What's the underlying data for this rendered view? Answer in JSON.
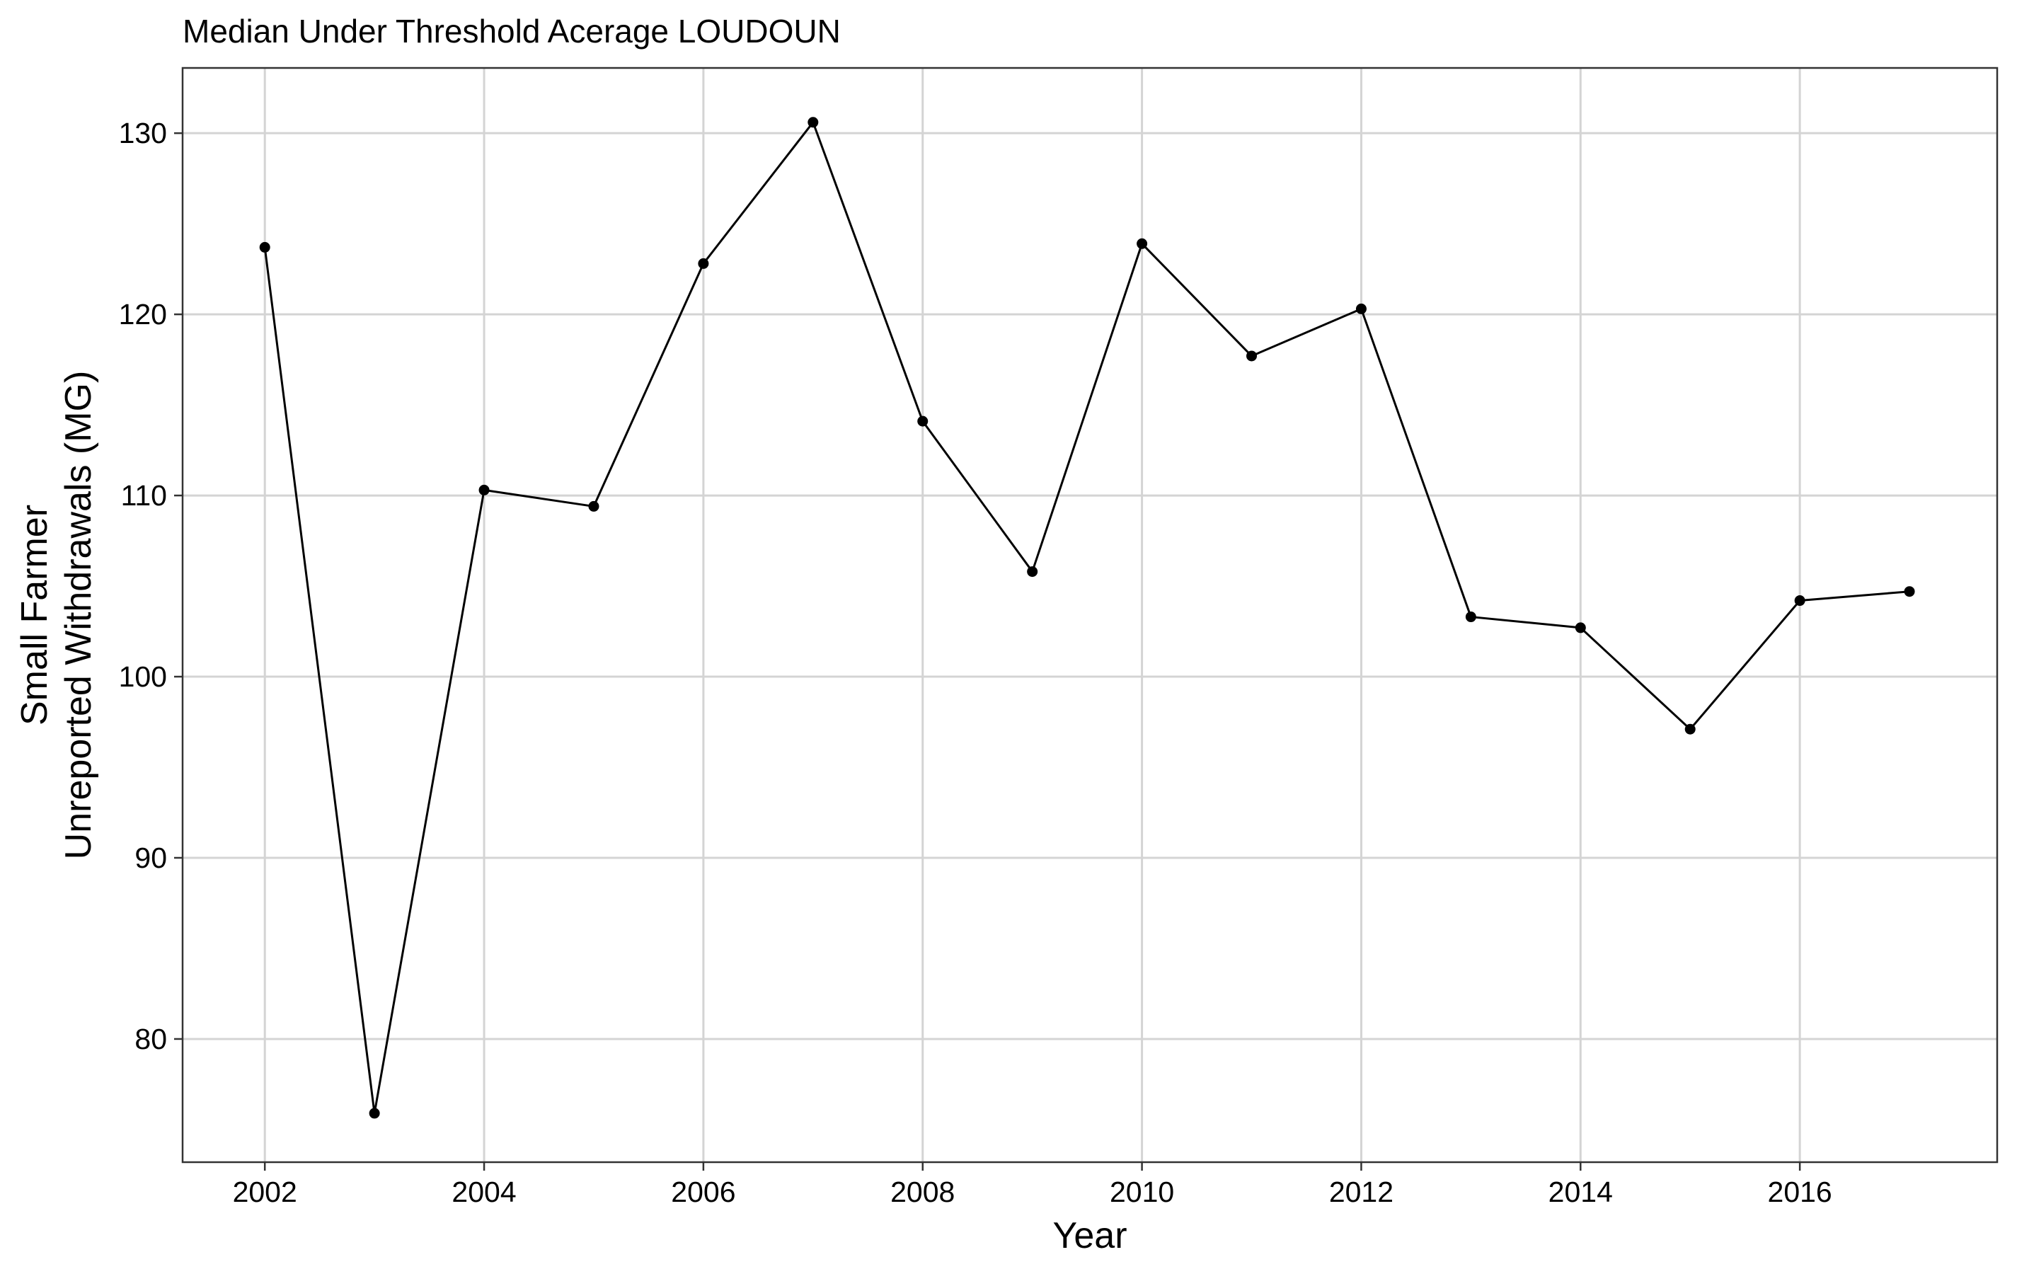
{
  "chart_data": {
    "type": "line",
    "title": "Median Under Threshold Acerage LOUDOUN",
    "xlabel": "Year",
    "ylabel_lines": [
      "Small Farmer",
      "Unreported Withdrawals (MG)"
    ],
    "xlim": [
      2001.25,
      2017.8
    ],
    "ylim": [
      73.2,
      133.6
    ],
    "xticks": [
      2002,
      2004,
      2006,
      2008,
      2010,
      2012,
      2014,
      2016
    ],
    "xtick_labels": [
      "2002",
      "2004",
      "2006",
      "2008",
      "2010",
      "2012",
      "2014",
      "2016"
    ],
    "yticks": [
      80,
      90,
      100,
      110,
      120,
      130
    ],
    "ytick_labels": [
      "80",
      "90",
      "100",
      "110",
      "120",
      "130"
    ],
    "grid": true,
    "legend": "none",
    "series": [
      {
        "color": "#000000",
        "x": [
          2002.0,
          2003.0,
          2004.0,
          2005.0,
          2006.0,
          2007.0,
          2008.0,
          2009.0,
          2010.0,
          2011.0,
          2012.0,
          2013.0,
          2014.0,
          2015.0,
          2016.0,
          2017.0
        ],
        "y": [
          123.7,
          75.9,
          110.3,
          109.4,
          122.8,
          130.6,
          114.1,
          105.8,
          123.9,
          117.7,
          120.3,
          103.3,
          102.7,
          97.1,
          104.2,
          104.7
        ]
      }
    ]
  }
}
